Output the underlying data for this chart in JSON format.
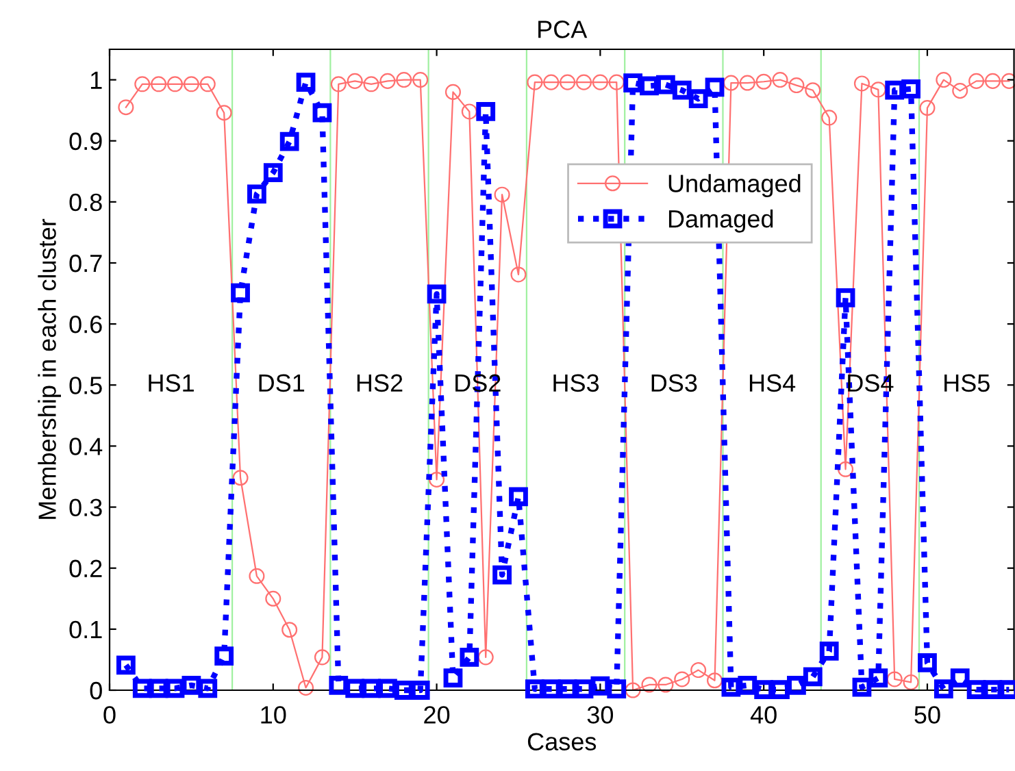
{
  "chart_data": {
    "type": "line",
    "title": "PCA",
    "xlabel": "Cases",
    "ylabel": "Membership in each cluster",
    "x": [
      1,
      2,
      3,
      4,
      5,
      6,
      7,
      8,
      9,
      10,
      11,
      12,
      13,
      14,
      15,
      16,
      17,
      18,
      19,
      20,
      21,
      22,
      23,
      24,
      25,
      26,
      27,
      28,
      29,
      30,
      31,
      32,
      33,
      34,
      35,
      36,
      37,
      38,
      39,
      40,
      41,
      42,
      43,
      44,
      45,
      46,
      47,
      48,
      49,
      50,
      51,
      52,
      53,
      54,
      55
    ],
    "series": [
      {
        "name": "Undamaged",
        "color": "#ff7070",
        "marker": "circle",
        "line_style": "solid",
        "values": [
          0.955,
          0.993,
          0.993,
          0.993,
          0.993,
          0.993,
          0.946,
          0.348,
          0.187,
          0.15,
          0.099,
          0.004,
          0.054,
          0.993,
          0.998,
          0.993,
          0.998,
          1.0,
          1.0,
          0.345,
          0.98,
          0.948,
          0.054,
          0.812,
          0.681,
          0.996,
          0.996,
          0.996,
          0.996,
          0.996,
          0.996,
          0.0,
          0.009,
          0.009,
          0.018,
          0.033,
          0.016,
          0.995,
          0.995,
          0.997,
          1.0,
          0.991,
          0.983,
          0.938,
          0.362,
          0.994,
          0.984,
          0.018,
          0.013,
          0.954,
          1.0,
          0.982,
          0.998,
          0.998,
          0.998
        ]
      },
      {
        "name": "Damaged",
        "color": "#0000ff",
        "marker": "square",
        "line_style": "dotted",
        "values": [
          0.041,
          0.003,
          0.003,
          0.003,
          0.008,
          0.003,
          0.056,
          0.651,
          0.813,
          0.848,
          0.899,
          0.996,
          0.946,
          0.008,
          0.003,
          0.003,
          0.003,
          0.0,
          0.0,
          0.649,
          0.02,
          0.054,
          0.948,
          0.189,
          0.317,
          0.002,
          0.002,
          0.002,
          0.002,
          0.007,
          0.002,
          0.995,
          0.99,
          0.992,
          0.983,
          0.969,
          0.988,
          0.005,
          0.008,
          0.001,
          0.001,
          0.008,
          0.022,
          0.064,
          0.643,
          0.005,
          0.02,
          0.983,
          0.985,
          0.045,
          0.002,
          0.02,
          0.001,
          0.001,
          0.001
        ]
      }
    ],
    "xlim": [
      0,
      55.3
    ],
    "ylim": [
      0,
      1.05
    ],
    "xticks": [
      0,
      10,
      20,
      30,
      40,
      50
    ],
    "yticks": [
      0,
      0.1,
      0.2,
      0.3,
      0.4,
      0.5,
      0.6,
      0.7,
      0.8,
      0.9,
      1
    ],
    "ref_lines": [
      {
        "axis": "x",
        "value": 7.5,
        "color": "#a0f0a0"
      },
      {
        "axis": "x",
        "value": 13.5,
        "color": "#a0f0a0"
      },
      {
        "axis": "x",
        "value": 19.5,
        "color": "#a0f0a0"
      },
      {
        "axis": "x",
        "value": 25.5,
        "color": "#a0f0a0"
      },
      {
        "axis": "x",
        "value": 31.5,
        "color": "#a0f0a0"
      },
      {
        "axis": "x",
        "value": 37.5,
        "color": "#a0f0a0"
      },
      {
        "axis": "x",
        "value": 43.5,
        "color": "#a0f0a0"
      },
      {
        "axis": "x",
        "value": 49.5,
        "color": "#a0f0a0"
      }
    ],
    "annotations": [
      "HS1",
      "DS1",
      "HS2",
      "DS2",
      "HS3",
      "DS3",
      "HS4",
      "DS4",
      "HS5"
    ],
    "grid": false,
    "legend": "top right"
  }
}
